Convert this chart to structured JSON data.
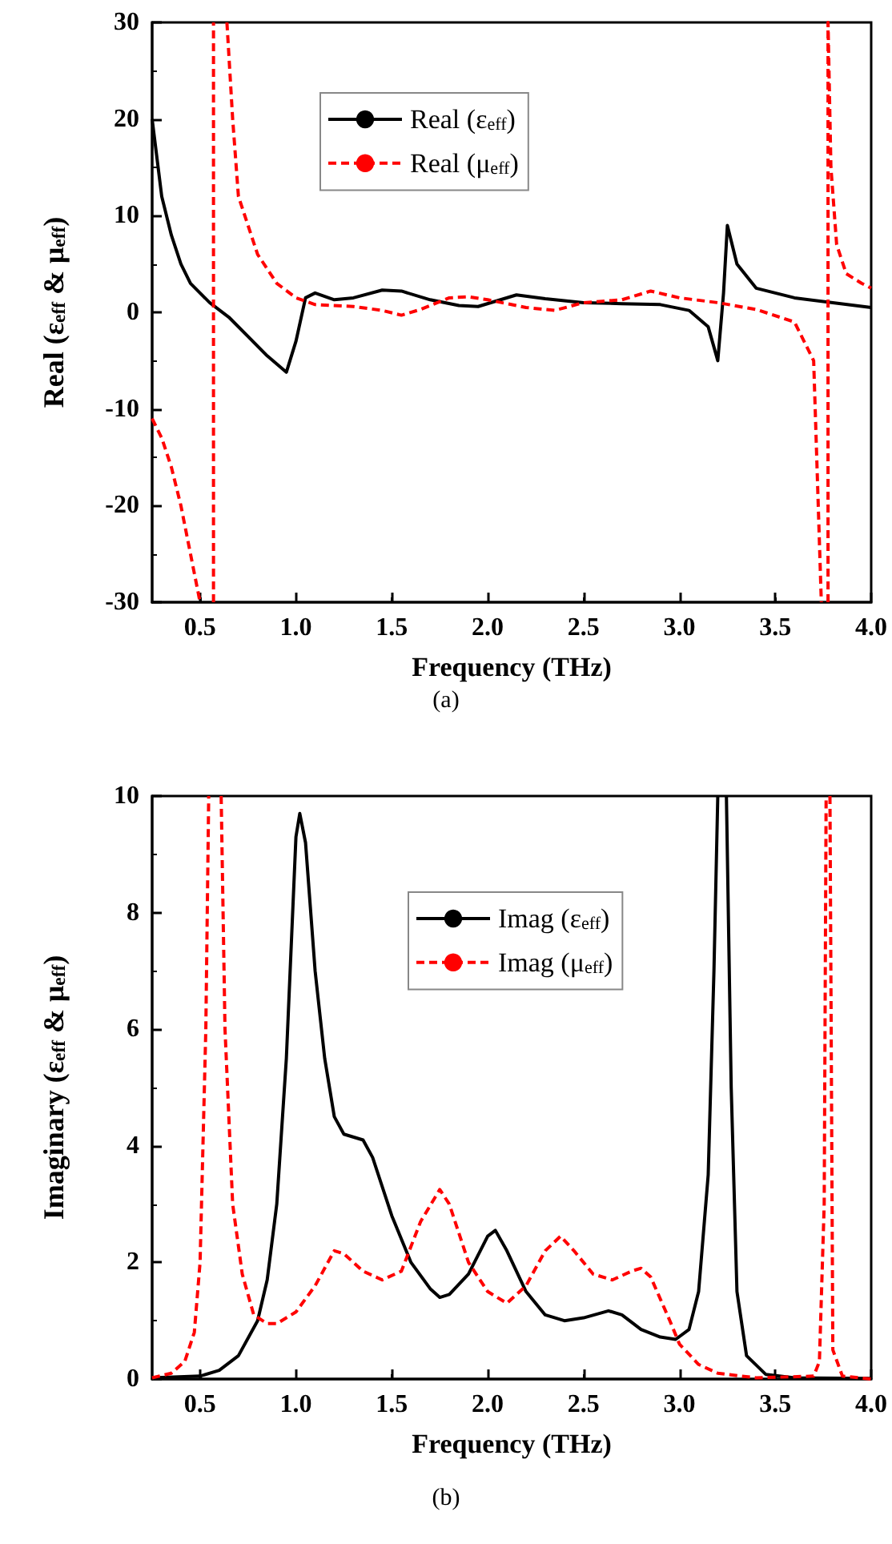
{
  "chart_data": [
    {
      "type": "line",
      "xlabel": "Frequency (THz)",
      "ylabel": "Real (ε$_{eff}$ & μ$_{eff}$)",
      "annotations": [
        "(a)"
      ],
      "xlim": [
        0.25,
        4.0
      ],
      "xticks": [
        {
          "value": 0.5,
          "label": "0.5"
        },
        {
          "value": 1,
          "label": "1.0"
        },
        {
          "value": 1.5,
          "label": "1.5"
        },
        {
          "value": 2,
          "label": "2.0"
        },
        {
          "value": 2.5,
          "label": "2.5"
        },
        {
          "value": 3,
          "label": "3.0"
        },
        {
          "value": 3.5,
          "label": "3.5"
        },
        {
          "value": 4,
          "label": "4.0"
        }
      ],
      "ylim": [
        -30,
        30
      ],
      "yticks": [
        -30,
        -20,
        -10,
        0,
        10,
        20,
        30
      ],
      "grid": false,
      "legend": "top",
      "marker": "none",
      "series": [
        {
          "name": "Real (ε$_{eff}$)",
          "color": "#000000",
          "line_style": "solid",
          "x": [
            0.25,
            0.3,
            0.35,
            0.4,
            0.45,
            0.55,
            0.65,
            0.75,
            0.85,
            0.95,
            1.0,
            1.05,
            1.1,
            1.2,
            1.3,
            1.45,
            1.55,
            1.7,
            1.85,
            1.95,
            2.05,
            2.15,
            2.3,
            2.5,
            2.7,
            2.9,
            3.05,
            3.15,
            3.2,
            3.23,
            3.25,
            3.3,
            3.4,
            3.6,
            3.8,
            4.0
          ],
          "values": [
            20,
            12,
            8,
            5,
            3,
            1,
            -0.5,
            -2.5,
            -4.5,
            -6.2,
            -3,
            1.5,
            2,
            1.3,
            1.5,
            2.3,
            2.2,
            1.3,
            0.7,
            0.6,
            1.2,
            1.8,
            1.4,
            1,
            0.9,
            0.8,
            0.2,
            -1.5,
            -5,
            2,
            9,
            5,
            2.5,
            1.5,
            1,
            0.5
          ]
        },
        {
          "name": "Real (μ$_{eff}$)",
          "color": "#ff0000",
          "line_style": "dashed",
          "x": [
            0.25,
            0.3,
            0.35,
            0.4,
            0.45,
            0.5,
            0.53,
            0.57,
            0.57,
            0.6,
            0.64,
            0.67,
            0.7,
            0.8,
            0.9,
            1.0,
            1.1,
            1.3,
            1.45,
            1.55,
            1.65,
            1.8,
            1.9,
            2.0,
            2.2,
            2.35,
            2.5,
            2.7,
            2.85,
            3.0,
            3.2,
            3.4,
            3.6,
            3.7,
            3.74,
            3.76,
            3.775,
            3.775,
            3.79,
            3.82,
            3.87,
            3.95,
            4.0
          ],
          "values": [
            -11,
            -13,
            -16,
            -20,
            -25,
            -30,
            null,
            -30,
            30,
            null,
            30,
            20,
            12,
            6,
            3,
            1.5,
            0.8,
            0.6,
            0.2,
            -0.3,
            0.3,
            1.5,
            1.6,
            1.3,
            0.5,
            0.2,
            1,
            1.3,
            2.2,
            1.5,
            1,
            0.3,
            -1,
            -5,
            -30,
            null,
            -30,
            30,
            15,
            7,
            4,
            3,
            2.5
          ]
        }
      ]
    },
    {
      "type": "line",
      "xlabel": "Frequency (THz)",
      "ylabel": "Imaginary (ε$_{eff}$ & μ$_{eff}$)",
      "annotations": [
        "(b)"
      ],
      "xlim": [
        0.25,
        4.0
      ],
      "xticks": [
        {
          "value": 0.5,
          "label": "0.5"
        },
        {
          "value": 1,
          "label": "1.0"
        },
        {
          "value": 1.5,
          "label": "1.5"
        },
        {
          "value": 2,
          "label": "2.0"
        },
        {
          "value": 2.5,
          "label": "2.5"
        },
        {
          "value": 3,
          "label": "3.0"
        },
        {
          "value": 3.5,
          "label": "3.5"
        },
        {
          "value": 4,
          "label": "4.0"
        }
      ],
      "ylim": [
        0,
        10
      ],
      "yticks": [
        0,
        2,
        4,
        6,
        8,
        10
      ],
      "grid": false,
      "legend": "top right",
      "marker": "none",
      "series": [
        {
          "name": "Imag (ε$_{eff}$)",
          "color": "#000000",
          "line_style": "solid",
          "x": [
            0.25,
            0.5,
            0.6,
            0.7,
            0.8,
            0.85,
            0.9,
            0.95,
            1.0,
            1.02,
            1.05,
            1.1,
            1.15,
            1.2,
            1.25,
            1.35,
            1.4,
            1.5,
            1.6,
            1.7,
            1.75,
            1.8,
            1.9,
            2.0,
            2.04,
            2.1,
            2.2,
            2.3,
            2.4,
            2.5,
            2.63,
            2.7,
            2.8,
            2.9,
            2.98,
            3.05,
            3.1,
            3.15,
            3.18,
            3.2,
            3.22,
            3.245,
            3.27,
            3.3,
            3.35,
            3.45,
            3.6,
            4.0
          ],
          "values": [
            0.02,
            0.05,
            0.15,
            0.4,
            1.0,
            1.7,
            3,
            5.5,
            9.3,
            9.7,
            9.2,
            7,
            5.5,
            4.5,
            4.2,
            4.1,
            3.8,
            2.8,
            2.0,
            1.55,
            1.4,
            1.45,
            1.8,
            2.45,
            2.55,
            2.2,
            1.5,
            1.1,
            1.0,
            1.05,
            1.17,
            1.1,
            0.85,
            0.72,
            0.68,
            0.85,
            1.5,
            3.5,
            7,
            10,
            null,
            10,
            5,
            1.5,
            0.4,
            0.08,
            0.02,
            0.01
          ]
        },
        {
          "name": "Imag (μ$_{eff}$)",
          "color": "#ff0000",
          "line_style": "dashed",
          "x": [
            0.25,
            0.35,
            0.42,
            0.47,
            0.5,
            0.53,
            0.545,
            0.58,
            0.61,
            0.63,
            0.67,
            0.72,
            0.78,
            0.85,
            0.9,
            1.0,
            1.1,
            1.2,
            1.25,
            1.35,
            1.45,
            1.55,
            1.65,
            1.75,
            1.8,
            1.9,
            2.0,
            2.1,
            2.2,
            2.3,
            2.38,
            2.45,
            2.55,
            2.65,
            2.75,
            2.8,
            2.85,
            2.95,
            3.0,
            3.1,
            3.2,
            3.4,
            3.7,
            3.73,
            3.755,
            3.765,
            3.775,
            3.785,
            3.8,
            3.85,
            4.0
          ],
          "values": [
            0.02,
            0.1,
            0.3,
            0.8,
            2,
            6,
            10,
            null,
            10,
            6,
            3,
            1.8,
            1.1,
            0.95,
            0.95,
            1.15,
            1.6,
            2.2,
            2.15,
            1.85,
            1.7,
            1.85,
            2.7,
            3.25,
            3.0,
            2.0,
            1.5,
            1.3,
            1.6,
            2.2,
            2.45,
            2.2,
            1.8,
            1.7,
            1.85,
            1.9,
            1.75,
            1.0,
            0.6,
            0.25,
            0.1,
            0.02,
            0.05,
            0.3,
            3,
            10,
            null,
            10,
            0.5,
            0.05,
            0
          ]
        }
      ]
    }
  ]
}
